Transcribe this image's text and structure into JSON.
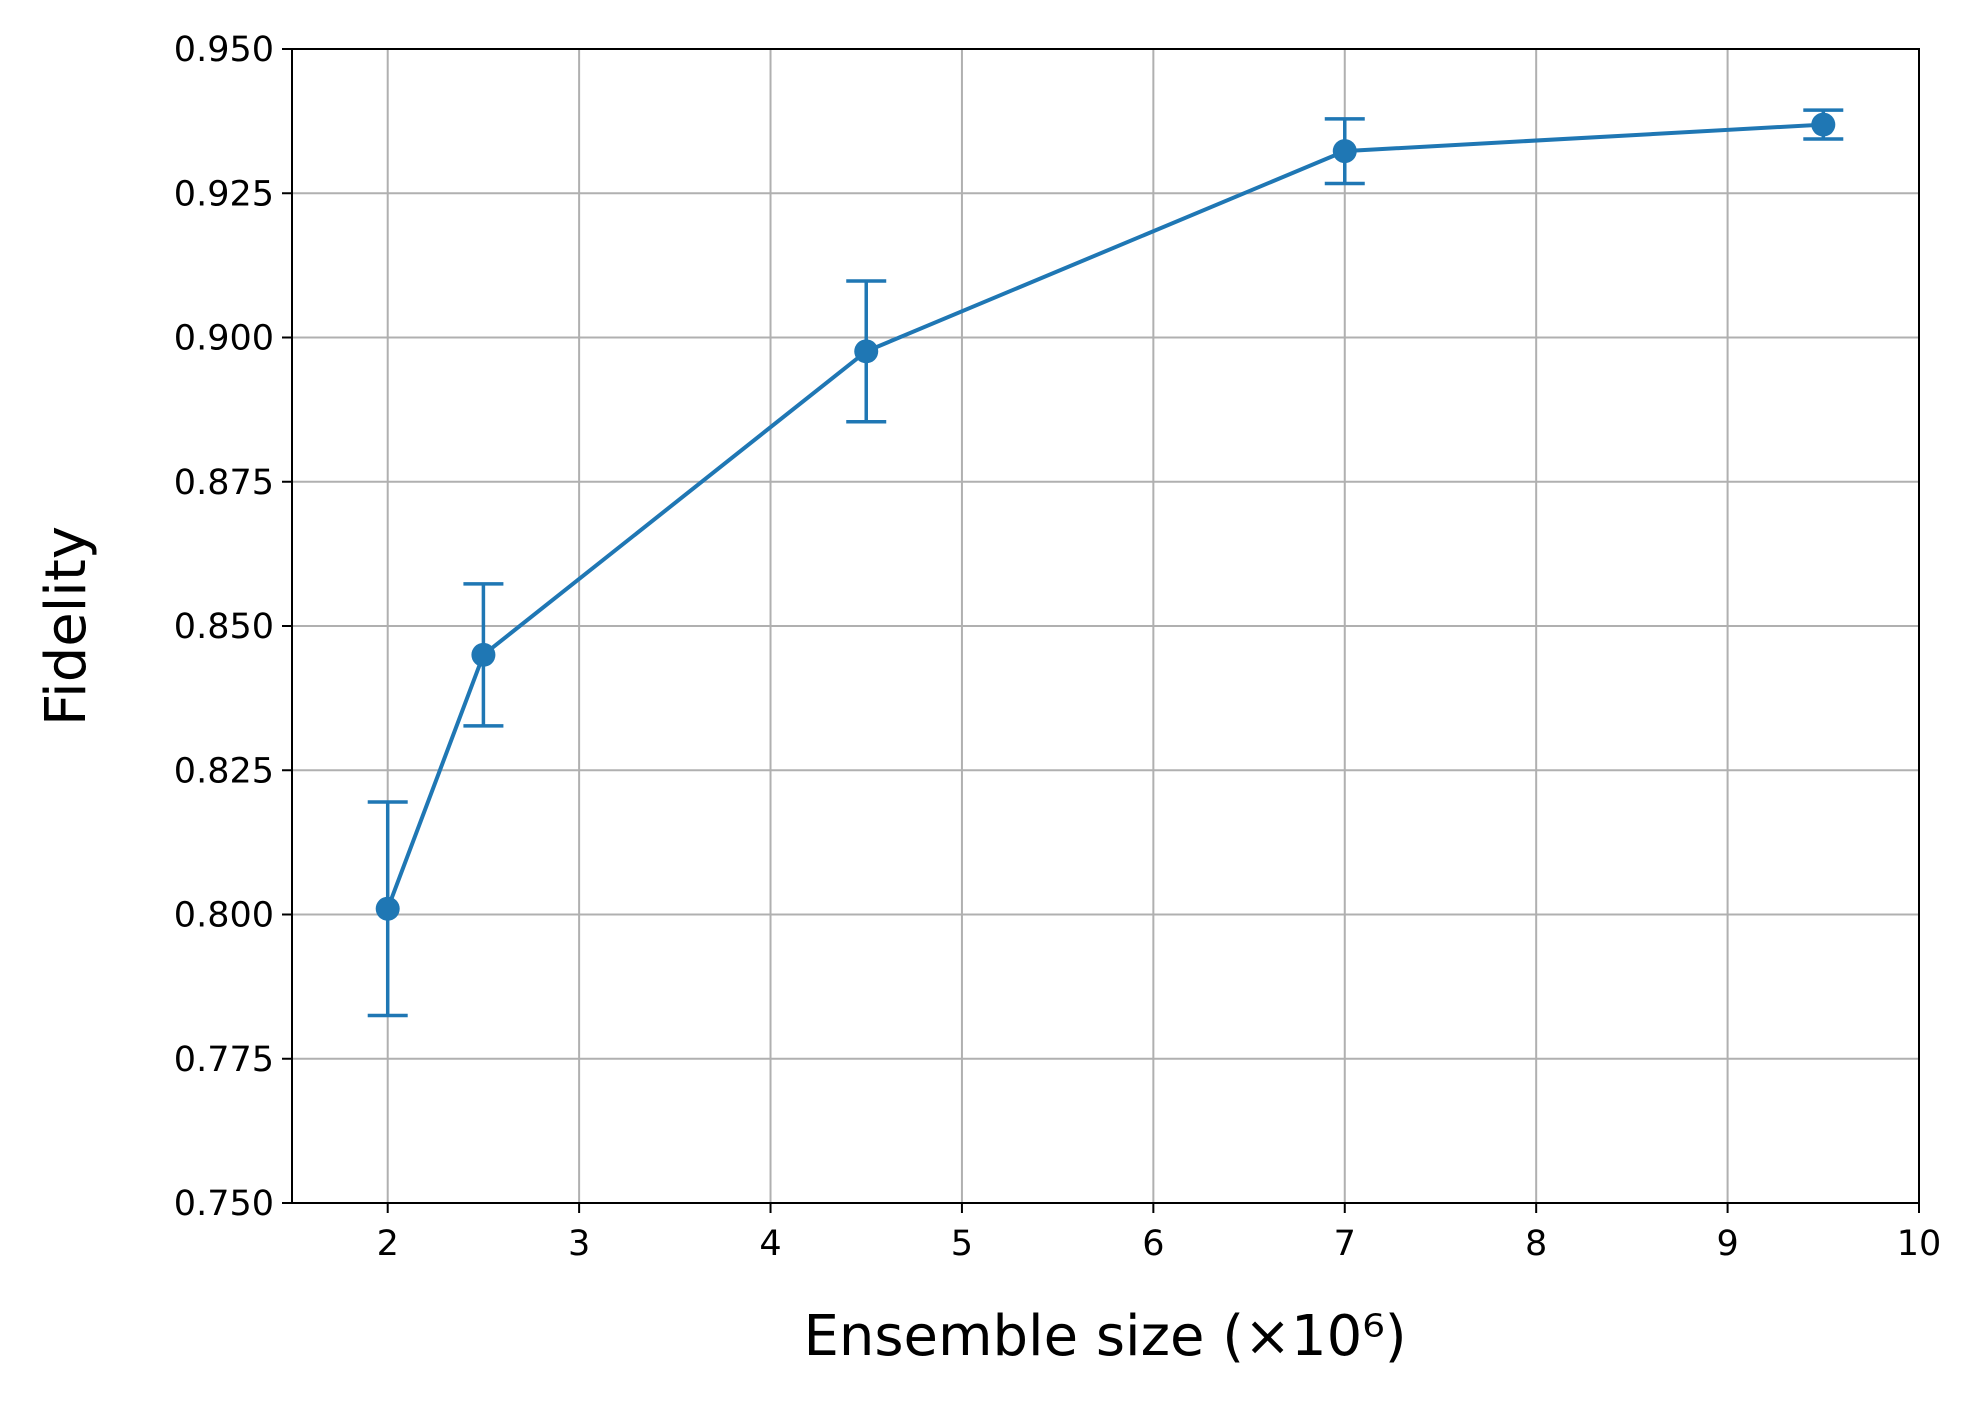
{
  "chart_data": {
    "type": "line",
    "xlabel": "Ensemble size (×10⁶)",
    "ylabel": "Fidelity",
    "x": [
      2,
      2.5,
      4.5,
      7,
      9.5
    ],
    "series": [
      {
        "color": "#1f77b4",
        "values": [
          0.801,
          0.845,
          0.8976,
          0.9323,
          0.9369
        ],
        "errors": [
          0.0185,
          0.0123,
          0.0122,
          0.0056,
          0.0025
        ]
      }
    ],
    "xlim": [
      1.5,
      10
    ],
    "ylim": [
      0.75,
      0.95
    ],
    "xticks": [
      2,
      3,
      4,
      5,
      6,
      7,
      8,
      9,
      10
    ],
    "yticks": [
      {
        "value": 0.75,
        "label": "0.750"
      },
      {
        "value": 0.775,
        "label": "0.775"
      },
      {
        "value": 0.8,
        "label": "0.800"
      },
      {
        "value": 0.825,
        "label": "0.825"
      },
      {
        "value": 0.85,
        "label": "0.850"
      },
      {
        "value": 0.875,
        "label": "0.875"
      },
      {
        "value": 0.9,
        "label": "0.900"
      },
      {
        "value": 0.925,
        "label": "0.925"
      },
      {
        "value": 0.95,
        "label": "0.950"
      }
    ],
    "grid": true
  }
}
